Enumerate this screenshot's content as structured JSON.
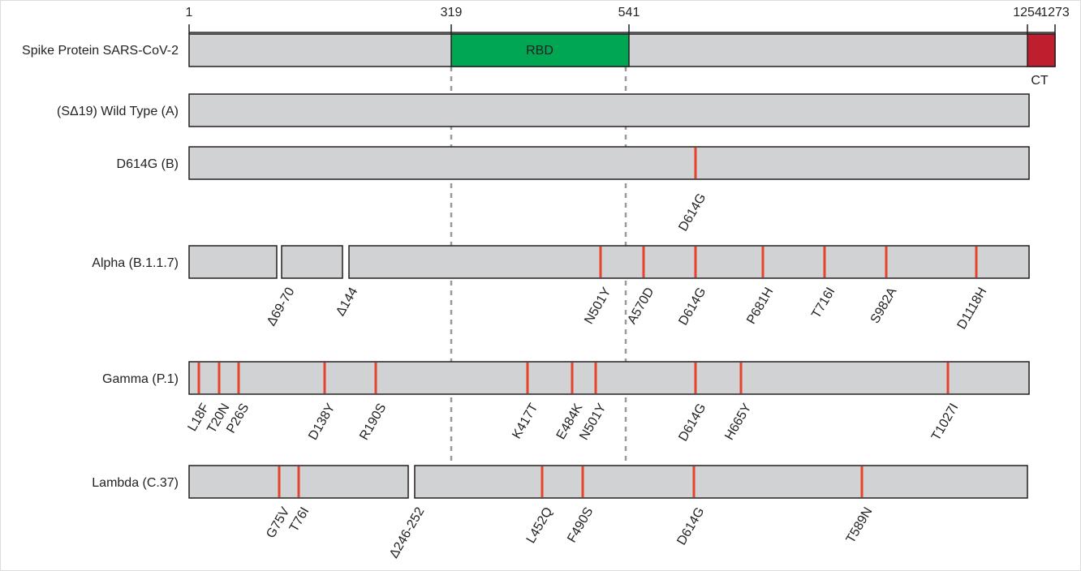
{
  "ruler": {
    "ticks": [
      "1",
      "319",
      "541",
      "1254",
      "1273"
    ]
  },
  "rows": [
    {
      "label": "Spike Protein SARS-CoV-2",
      "domains": [
        "RBD",
        "CT"
      ]
    },
    {
      "label": "(SΔ19) Wild Type (A)"
    },
    {
      "label": "D614G (B)",
      "mutations": [
        "D614G"
      ]
    },
    {
      "label": "Alpha (B.1.1.7)",
      "mutations": [
        "Δ69-70",
        "Δ144",
        "N501Y",
        "A570D",
        "D614G",
        "P681H",
        "T716I",
        "S982A",
        "D1118H"
      ]
    },
    {
      "label": "Gamma (P.1)",
      "mutations": [
        "L18F",
        "T20N",
        "P26S",
        "D138Y",
        "R190S",
        "K417T",
        "E484K",
        "N501Y",
        "D614G",
        "H665Y",
        "T1027I"
      ]
    },
    {
      "label": "Lambda (C.37)",
      "mutations": [
        "G75V",
        "T76I",
        "Δ246-252",
        "L452Q",
        "F490S",
        "D614G",
        "T589N"
      ]
    }
  ]
}
